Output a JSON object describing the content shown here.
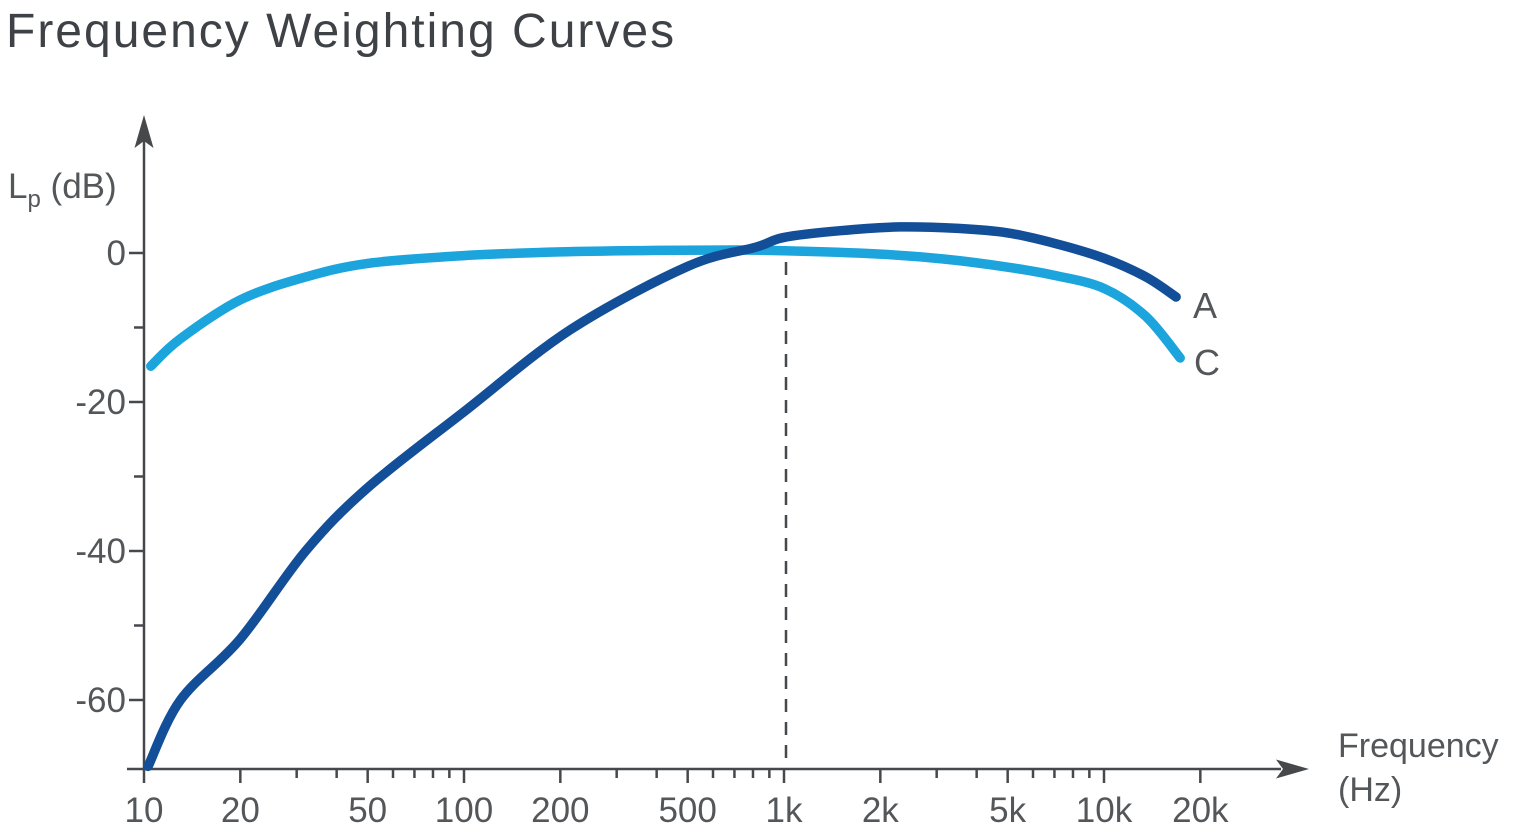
{
  "chart_data": {
    "type": "line",
    "title": "Frequency Weighting Curves",
    "x_axis": {
      "label_line1": "Frequency",
      "label_line2": "(Hz)",
      "scale": "log",
      "range_hz": [
        10,
        20000
      ],
      "ticks": [
        {
          "f": 10,
          "label": "10"
        },
        {
          "f": 20,
          "label": "20"
        },
        {
          "f": 30
        },
        {
          "f": 40
        },
        {
          "f": 50,
          "label": "50"
        },
        {
          "f": 60
        },
        {
          "f": 70
        },
        {
          "f": 80
        },
        {
          "f": 90
        },
        {
          "f": 100,
          "label": "100"
        },
        {
          "f": 200,
          "label": "200"
        },
        {
          "f": 300
        },
        {
          "f": 400
        },
        {
          "f": 500,
          "label": "500"
        },
        {
          "f": 600
        },
        {
          "f": 700
        },
        {
          "f": 800
        },
        {
          "f": 900
        },
        {
          "f": 1000,
          "label": "1k"
        },
        {
          "f": 2000,
          "label": "2k"
        },
        {
          "f": 3000
        },
        {
          "f": 4000
        },
        {
          "f": 5000,
          "label": "5k"
        },
        {
          "f": 6000
        },
        {
          "f": 7000
        },
        {
          "f": 8000
        },
        {
          "f": 9000
        },
        {
          "f": 10000,
          "label": "10k"
        },
        {
          "f": 20000,
          "label": "20k"
        }
      ]
    },
    "y_axis": {
      "label_main": "L",
      "label_sub": "p",
      "label_unit": " (dB)",
      "unit": "dB",
      "range_db": [
        -69,
        6
      ],
      "ticks": [
        {
          "db": 0,
          "label": "0"
        },
        {
          "db": -10
        },
        {
          "db": -20,
          "label": "-20"
        },
        {
          "db": -30
        },
        {
          "db": -40,
          "label": "-40"
        },
        {
          "db": -50
        },
        {
          "db": -60,
          "label": "-60"
        }
      ]
    },
    "reference_line_hz": 1000,
    "series": [
      {
        "name": "A",
        "color": "#134E98",
        "points_hz_db": [
          [
            10.3,
            -68.9
          ],
          [
            13,
            -60
          ],
          [
            20,
            -51.8
          ],
          [
            32,
            -40
          ],
          [
            50,
            -31.5
          ],
          [
            100,
            -21.3
          ],
          [
            215,
            -10.3
          ],
          [
            500,
            -1.8
          ],
          [
            820,
            0.8
          ],
          [
            1000,
            2.1
          ],
          [
            1500,
            3.0
          ],
          [
            2300,
            3.5
          ],
          [
            3500,
            3.3
          ],
          [
            5000,
            2.7
          ],
          [
            7000,
            1.3
          ],
          [
            10000,
            -0.7
          ],
          [
            13500,
            -3.2
          ],
          [
            16800,
            -5.9
          ]
        ]
      },
      {
        "name": "C",
        "color": "#1CA4DC",
        "points_hz_db": [
          [
            10.5,
            -15.2
          ],
          [
            13,
            -11.5
          ],
          [
            20,
            -6.3
          ],
          [
            31.5,
            -3.3
          ],
          [
            50,
            -1.4
          ],
          [
            100,
            -0.35
          ],
          [
            200,
            0.15
          ],
          [
            400,
            0.35
          ],
          [
            700,
            0.4
          ],
          [
            1000,
            0.3
          ],
          [
            2000,
            -0.15
          ],
          [
            3150,
            -0.8
          ],
          [
            5000,
            -1.9
          ],
          [
            7000,
            -3.0
          ],
          [
            10000,
            -4.75
          ],
          [
            13500,
            -8.5
          ],
          [
            17300,
            -14.1
          ]
        ]
      }
    ],
    "colors": {
      "axis": "#46494C",
      "tick_label": "#54575A",
      "title": "#3E4145",
      "reference_line": "#46494C"
    }
  }
}
